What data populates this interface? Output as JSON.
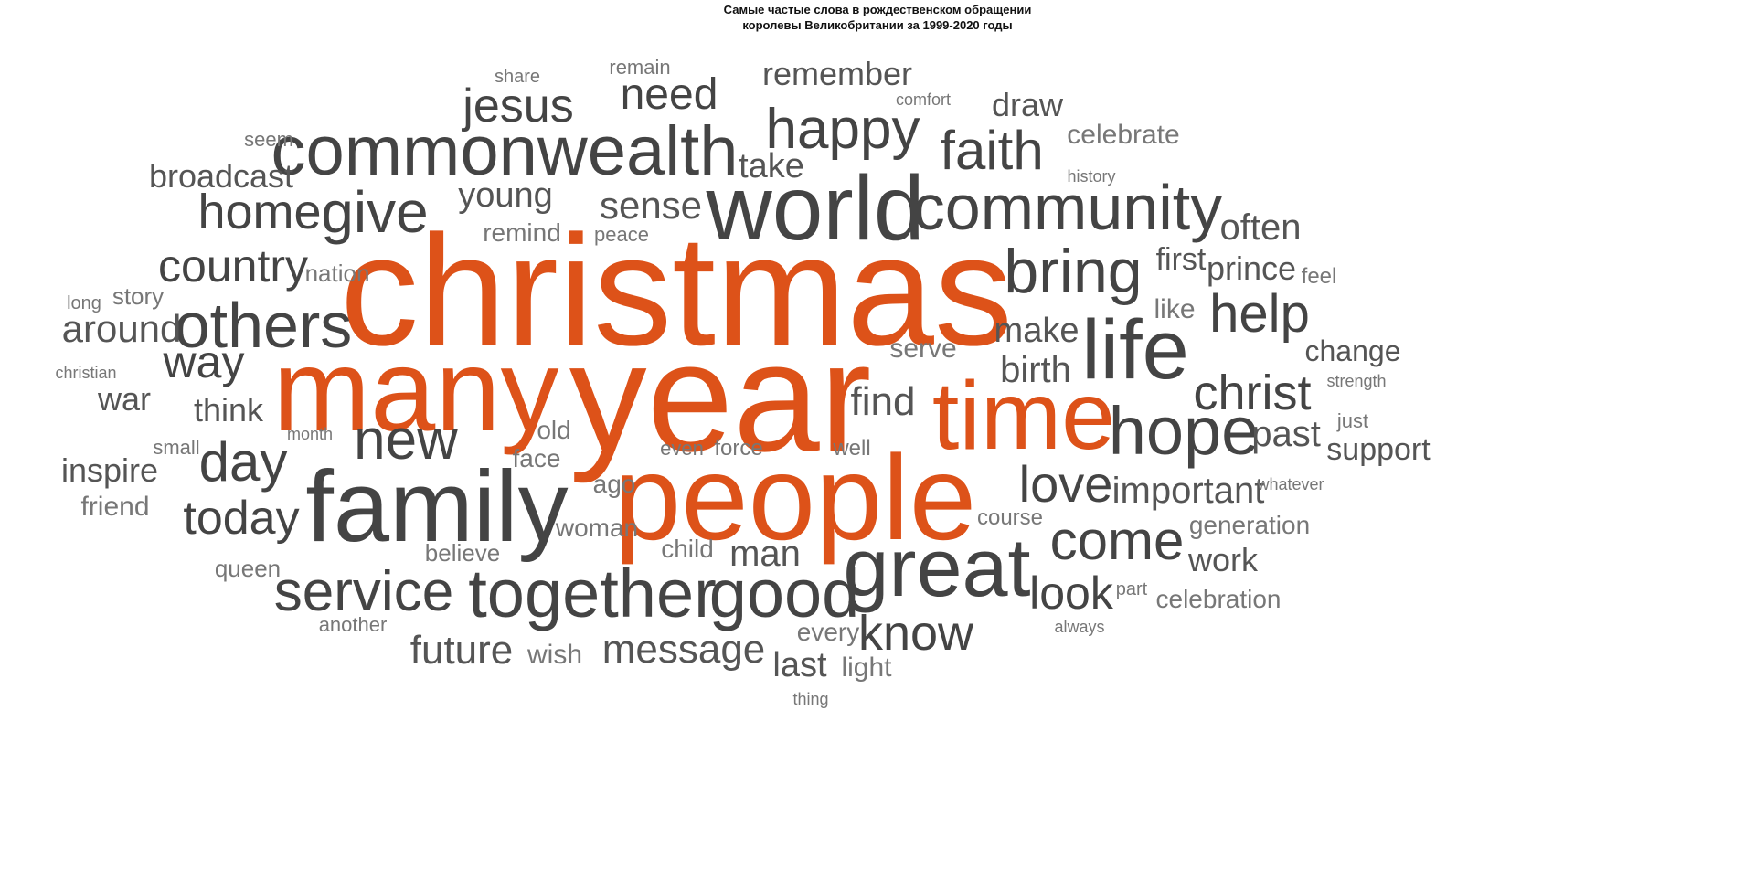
{
  "title": {
    "line1": "Самые частые слова в рождественском обращении",
    "line2": "королевы Великобритании за 1999-2020 годы"
  },
  "colors": {
    "highlight": "#dd5219",
    "dark": "#444444",
    "medium": "#555555",
    "light": "#777777"
  },
  "words": [
    {
      "text": "christmas",
      "tone": "highlight"
    },
    {
      "text": "year",
      "tone": "highlight"
    },
    {
      "text": "many",
      "tone": "highlight"
    },
    {
      "text": "people",
      "tone": "highlight"
    },
    {
      "text": "time",
      "tone": "highlight"
    },
    {
      "text": "family",
      "tone": "dark"
    },
    {
      "text": "world",
      "tone": "dark"
    },
    {
      "text": "great",
      "tone": "dark"
    },
    {
      "text": "commonwealth",
      "tone": "dark"
    },
    {
      "text": "life",
      "tone": "dark"
    },
    {
      "text": "together",
      "tone": "dark"
    },
    {
      "text": "hope",
      "tone": "dark"
    },
    {
      "text": "good",
      "tone": "dark"
    },
    {
      "text": "community",
      "tone": "dark"
    },
    {
      "text": "others",
      "tone": "dark"
    },
    {
      "text": "bring",
      "tone": "dark"
    },
    {
      "text": "give",
      "tone": "dark"
    },
    {
      "text": "happy",
      "tone": "dark"
    },
    {
      "text": "service",
      "tone": "dark"
    },
    {
      "text": "faith",
      "tone": "dark"
    },
    {
      "text": "come",
      "tone": "dark"
    },
    {
      "text": "new",
      "tone": "dark"
    },
    {
      "text": "help",
      "tone": "dark"
    },
    {
      "text": "day",
      "tone": "dark"
    },
    {
      "text": "home",
      "tone": "dark"
    },
    {
      "text": "love",
      "tone": "dark"
    },
    {
      "text": "christ",
      "tone": "dark"
    },
    {
      "text": "know",
      "tone": "dark"
    },
    {
      "text": "jesus",
      "tone": "dark"
    },
    {
      "text": "today",
      "tone": "dark"
    },
    {
      "text": "country",
      "tone": "dark"
    },
    {
      "text": "look",
      "tone": "dark"
    },
    {
      "text": "need",
      "tone": "dark"
    },
    {
      "text": "way",
      "tone": "dark"
    },
    {
      "text": "message",
      "tone": "medium"
    },
    {
      "text": "future",
      "tone": "medium"
    },
    {
      "text": "around",
      "tone": "medium"
    },
    {
      "text": "sense",
      "tone": "medium"
    },
    {
      "text": "find",
      "tone": "medium"
    },
    {
      "text": "important",
      "tone": "medium"
    },
    {
      "text": "past",
      "tone": "medium"
    },
    {
      "text": "birth",
      "tone": "medium"
    },
    {
      "text": "often",
      "tone": "medium"
    },
    {
      "text": "young",
      "tone": "medium"
    },
    {
      "text": "man",
      "tone": "medium"
    },
    {
      "text": "take",
      "tone": "medium"
    },
    {
      "text": "make",
      "tone": "medium"
    },
    {
      "text": "remember",
      "tone": "medium"
    },
    {
      "text": "broadcast",
      "tone": "medium"
    },
    {
      "text": "think",
      "tone": "medium"
    },
    {
      "text": "prince",
      "tone": "medium"
    },
    {
      "text": "last",
      "tone": "medium"
    },
    {
      "text": "war",
      "tone": "medium"
    },
    {
      "text": "inspire",
      "tone": "medium"
    },
    {
      "text": "draw",
      "tone": "medium"
    },
    {
      "text": "work",
      "tone": "medium"
    },
    {
      "text": "first",
      "tone": "medium"
    },
    {
      "text": "support",
      "tone": "medium"
    },
    {
      "text": "change",
      "tone": "medium"
    },
    {
      "text": "celebrate",
      "tone": "light"
    },
    {
      "text": "serve",
      "tone": "light"
    },
    {
      "text": "like",
      "tone": "light"
    },
    {
      "text": "light",
      "tone": "light"
    },
    {
      "text": "wish",
      "tone": "light"
    },
    {
      "text": "friend",
      "tone": "light"
    },
    {
      "text": "celebration",
      "tone": "light"
    },
    {
      "text": "generation",
      "tone": "light"
    },
    {
      "text": "every",
      "tone": "light"
    },
    {
      "text": "face",
      "tone": "light"
    },
    {
      "text": "ago",
      "tone": "light"
    },
    {
      "text": "old",
      "tone": "light"
    },
    {
      "text": "woman",
      "tone": "light"
    },
    {
      "text": "remind",
      "tone": "light"
    },
    {
      "text": "story",
      "tone": "light"
    },
    {
      "text": "nation",
      "tone": "light"
    },
    {
      "text": "believe",
      "tone": "light"
    },
    {
      "text": "queen",
      "tone": "light"
    },
    {
      "text": "child",
      "tone": "light"
    },
    {
      "text": "force",
      "tone": "light"
    },
    {
      "text": "well",
      "tone": "light"
    },
    {
      "text": "course",
      "tone": "light"
    },
    {
      "text": "seem",
      "tone": "light"
    },
    {
      "text": "feel",
      "tone": "light"
    },
    {
      "text": "just",
      "tone": "light"
    },
    {
      "text": "another",
      "tone": "light"
    },
    {
      "text": "peace",
      "tone": "light"
    },
    {
      "text": "remain",
      "tone": "light"
    },
    {
      "text": "share",
      "tone": "light"
    },
    {
      "text": "small",
      "tone": "light"
    },
    {
      "text": "even",
      "tone": "light"
    },
    {
      "text": "long",
      "tone": "light"
    },
    {
      "text": "christian",
      "tone": "light"
    },
    {
      "text": "comfort",
      "tone": "light"
    },
    {
      "text": "history",
      "tone": "light"
    },
    {
      "text": "month",
      "tone": "light"
    },
    {
      "text": "strength",
      "tone": "light"
    },
    {
      "text": "whatever",
      "tone": "light"
    },
    {
      "text": "part",
      "tone": "light"
    },
    {
      "text": "always",
      "tone": "light"
    },
    {
      "text": "thing",
      "tone": "light"
    }
  ]
}
